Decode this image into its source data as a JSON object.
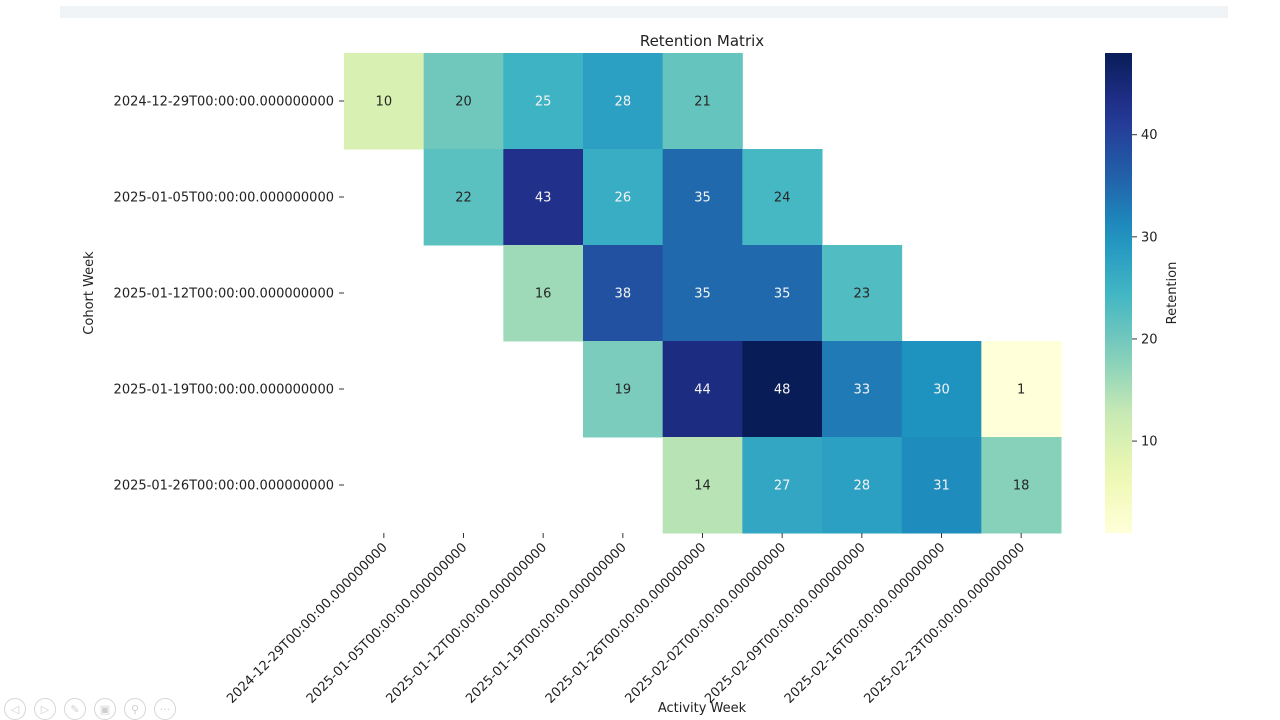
{
  "chart_data": {
    "type": "heatmap",
    "title": "Retention Matrix",
    "xlabel": "Activity Week",
    "ylabel": "Cohort Week",
    "colorbar_label": "Retention",
    "colormap": "YlGnBu",
    "color_range": [
      1,
      48
    ],
    "colorbar_ticks": [
      10,
      20,
      30,
      40
    ],
    "x_categories": [
      "2024-12-29T00:00:00.000000000",
      "2025-01-05T00:00:00.000000000",
      "2025-01-12T00:00:00.000000000",
      "2025-01-19T00:00:00.000000000",
      "2025-01-26T00:00:00.000000000",
      "2025-02-02T00:00:00.000000000",
      "2025-02-09T00:00:00.000000000",
      "2025-02-16T00:00:00.000000000",
      "2025-02-23T00:00:00.000000000"
    ],
    "y_categories": [
      "2024-12-29T00:00:00.000000000",
      "2025-01-05T00:00:00.000000000",
      "2025-01-12T00:00:00.000000000",
      "2025-01-19T00:00:00.000000000",
      "2025-01-26T00:00:00.000000000"
    ],
    "values": [
      [
        10,
        20,
        25,
        28,
        21,
        null,
        null,
        null,
        null
      ],
      [
        null,
        22,
        43,
        26,
        35,
        24,
        null,
        null,
        null
      ],
      [
        null,
        null,
        16,
        38,
        35,
        35,
        23,
        null,
        null
      ],
      [
        null,
        null,
        null,
        19,
        44,
        48,
        33,
        30,
        1
      ],
      [
        null,
        null,
        null,
        null,
        14,
        27,
        28,
        31,
        18
      ]
    ]
  },
  "toolbar": {
    "icons": [
      "back-icon",
      "forward-icon",
      "pan-icon",
      "zoom-rect-icon",
      "zoom-icon",
      "more-icon"
    ]
  }
}
